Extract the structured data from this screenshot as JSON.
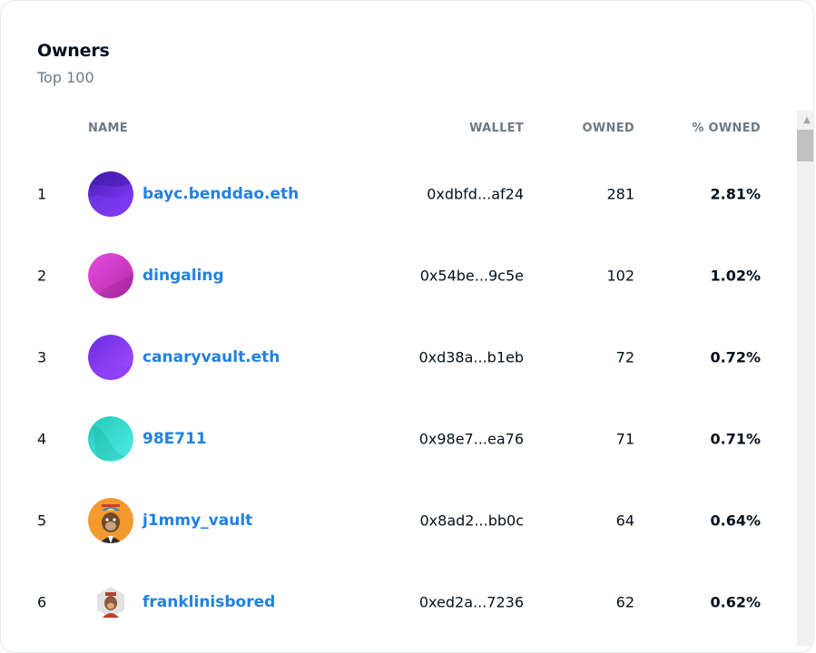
{
  "card": {
    "title": "Owners",
    "subtitle": "Top 100"
  },
  "table": {
    "headers": {
      "name": "NAME",
      "wallet": "WALLET",
      "owned": "OWNED",
      "pct_owned": "% OWNED"
    },
    "rows": [
      {
        "rank": "1",
        "name": "bayc.benddao.eth",
        "wallet": "0xdbfd...af24",
        "owned": "281",
        "pct": "2.81%",
        "avatar": "gradient-purple-wave",
        "avatar_colors": [
          "#4a1fb8",
          "#8b3dff"
        ]
      },
      {
        "rank": "2",
        "name": "dingaling",
        "wallet": "0x54be...9c5e",
        "owned": "102",
        "pct": "1.02%",
        "avatar": "gradient-magenta",
        "avatar_colors": [
          "#c02fb8",
          "#e84de0"
        ]
      },
      {
        "rank": "3",
        "name": "canaryvault.eth",
        "wallet": "0xd38a...b1eb",
        "owned": "72",
        "pct": "0.72%",
        "avatar": "gradient-violet",
        "avatar_colors": [
          "#6a2de0",
          "#9b4dff"
        ]
      },
      {
        "rank": "4",
        "name": "98E711",
        "wallet": "0x98e7...ea76",
        "owned": "71",
        "pct": "0.71%",
        "avatar": "gradient-teal",
        "avatar_colors": [
          "#2ad3c0",
          "#46e6e0"
        ]
      },
      {
        "rank": "5",
        "name": "j1mmy_vault",
        "wallet": "0x8ad2...bb0c",
        "owned": "64",
        "pct": "0.64%",
        "avatar": "ape-orange-portrait",
        "avatar_colors": [
          "#f29a2e",
          "#6b4a2e"
        ]
      },
      {
        "rank": "6",
        "name": "franklinisbored",
        "wallet": "0xed2a...7236",
        "owned": "62",
        "pct": "0.62%",
        "avatar": "ape-hexagon-portrait",
        "avatar_colors": [
          "#d9d9d9",
          "#b3462e"
        ]
      }
    ]
  }
}
